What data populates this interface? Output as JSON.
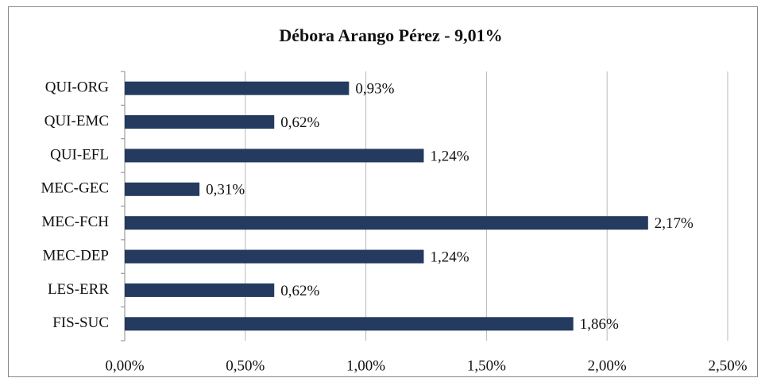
{
  "chart_data": {
    "type": "barh",
    "title": "Débora Arango Pérez - 9,01%",
    "categories": [
      "QUI-ORG",
      "QUI-EMC",
      "QUI-EFL",
      "MEC-GEC",
      "MEC-FCH",
      "MEC-DEP",
      "LES-ERR",
      "FIS-SUC"
    ],
    "values": [
      0.93,
      0.62,
      1.24,
      0.31,
      2.17,
      1.24,
      0.62,
      1.86
    ],
    "value_labels": [
      "0,93%",
      "0,62%",
      "1,24%",
      "0,31%",
      "2,17%",
      "1,24%",
      "0,62%",
      "1,86%"
    ],
    "color": "#243a5e",
    "xlim": [
      0,
      2.5
    ],
    "xticks": [
      {
        "value": 0,
        "label": "0,00%"
      },
      {
        "value": 0.5,
        "label": "0,50%"
      },
      {
        "value": 1,
        "label": "1,00%"
      },
      {
        "value": 1.5,
        "label": "1,50%"
      },
      {
        "value": 2,
        "label": "2,00%"
      },
      {
        "value": 2.5,
        "label": "2,50%"
      }
    ],
    "grid": true
  }
}
